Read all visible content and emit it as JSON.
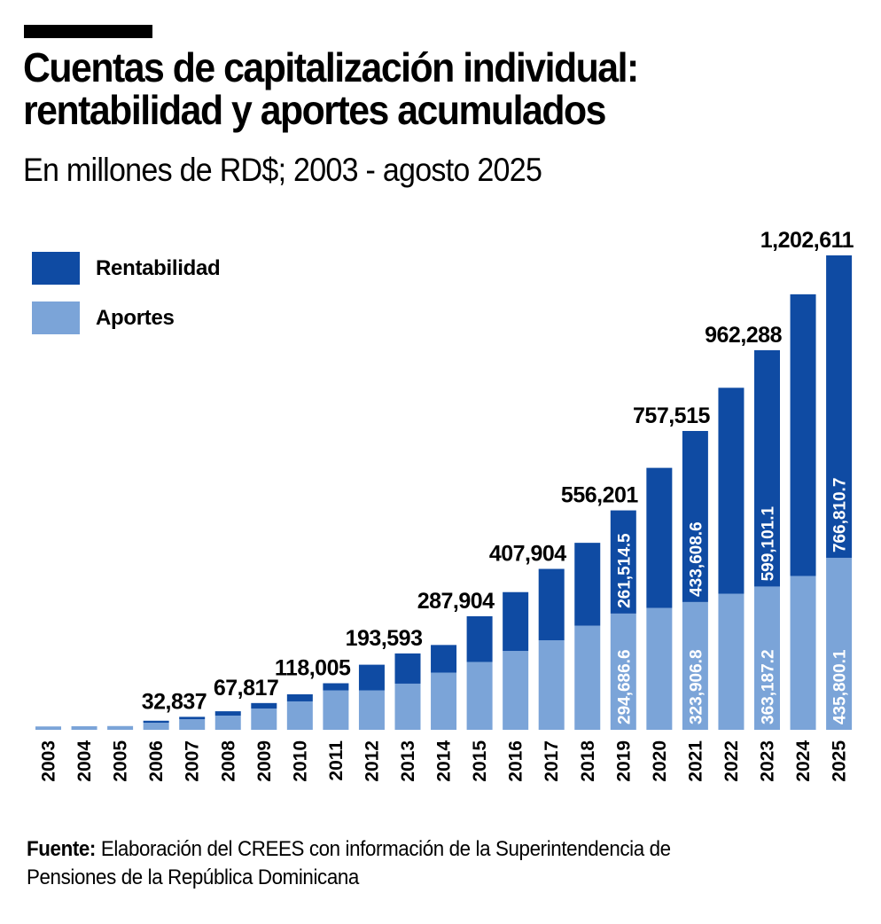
{
  "header": {
    "title_line1": "Cuentas de capitalización individual:",
    "title_line2": "rentabilidad y aportes acumulados",
    "subtitle": "En millones de RD$; 2003 - agosto 2025"
  },
  "footer": {
    "source_label": "Fuente:",
    "source_text_line1": " Elaboración del CREES con información de la Superintendencia de",
    "source_text_line2": "Pensiones de la República Dominicana"
  },
  "colors": {
    "rentabilidad": "#0f4ba3",
    "aportes": "#7ba4d8"
  },
  "chart_data": {
    "type": "bar",
    "stacked": true,
    "title": "Cuentas de capitalización individual: rentabilidad y aportes acumulados",
    "subtitle": "En millones de RD$; 2003 - agosto 2025",
    "xlabel": "",
    "ylabel": "",
    "ylim": [
      0,
      1250000
    ],
    "grid": false,
    "legend": {
      "position": "top-left",
      "entries": [
        "Rentabilidad",
        "Aportes"
      ]
    },
    "categories": [
      "2003",
      "2004",
      "2005",
      "2006",
      "2007",
      "2008",
      "2009",
      "2010",
      "2011",
      "2012",
      "2013",
      "2014",
      "2015",
      "2016",
      "2017",
      "2018",
      "2019",
      "2020",
      "2021",
      "2022",
      "2023",
      "2024",
      "2025"
    ],
    "series": [
      {
        "name": "Aportes",
        "values": [
          8500,
          9000,
          9500,
          18000,
          27000,
          36000,
          54000,
          72000,
          100000,
          100000,
          117000,
          145000,
          172000,
          200000,
          227000,
          264000,
          294686.6,
          309000,
          323906.8,
          345000,
          363187.2,
          390000,
          435800.1
        ]
      },
      {
        "name": "Rentabilidad",
        "values": [
          0,
          0,
          0,
          5000,
          5837,
          11000,
          13817,
          18000,
          18005,
          65000,
          76593,
          70000,
          115904,
          149000,
          180904,
          210000,
          261514.5,
          355000,
          433608.6,
          522000,
          599101.1,
          714000,
          766810.7
        ]
      }
    ],
    "total_labels": [
      {
        "category": "2007",
        "text": "32,837"
      },
      {
        "category": "2009",
        "text": "67,817"
      },
      {
        "category": "2011",
        "text": "118,005"
      },
      {
        "category": "2013",
        "text": "193,593"
      },
      {
        "category": "2015",
        "text": "287,904"
      },
      {
        "category": "2017",
        "text": "407,904"
      },
      {
        "category": "2019",
        "text": "556,201"
      },
      {
        "category": "2021",
        "text": "757,515"
      },
      {
        "category": "2023",
        "text": "962,288"
      },
      {
        "category": "2025",
        "text": "1,202,611"
      }
    ],
    "segment_labels": [
      {
        "category": "2019",
        "series": "Aportes",
        "text": "294,686.6"
      },
      {
        "category": "2019",
        "series": "Rentabilidad",
        "text": "261,514.5"
      },
      {
        "category": "2021",
        "series": "Aportes",
        "text": "323,906.8"
      },
      {
        "category": "2021",
        "series": "Rentabilidad",
        "text": "433,608.6"
      },
      {
        "category": "2023",
        "series": "Aportes",
        "text": "363,187.2"
      },
      {
        "category": "2023",
        "series": "Rentabilidad",
        "text": "599,101.1"
      },
      {
        "category": "2025",
        "series": "Aportes",
        "text": "435,800.1"
      },
      {
        "category": "2025",
        "series": "Rentabilidad",
        "text": "766,810.7"
      }
    ]
  }
}
